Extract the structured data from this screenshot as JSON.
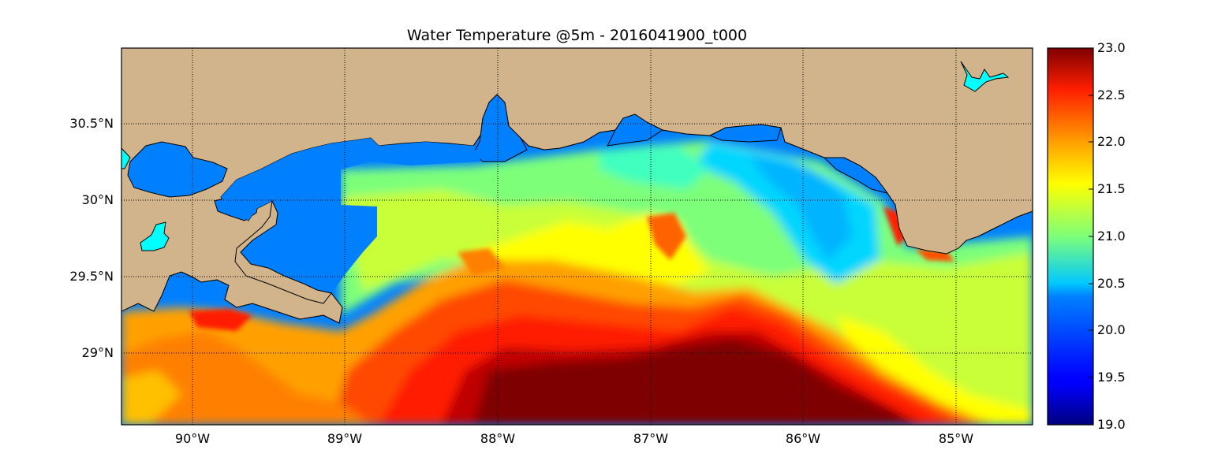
{
  "title": "Water Temperature @5m - 2016041900_t000",
  "map": {
    "lon_range": [
      -90.5,
      -84.5
    ],
    "lat_range": [
      28.55,
      31.0
    ],
    "grid": true,
    "land_color": "#d2b48c",
    "water_color": "#0080ff",
    "lakes_color": "#00ffff",
    "lat_ticks": [
      "30.5°N",
      "30°N",
      "29.5°N",
      "29°N"
    ],
    "lon_ticks": [
      "90°W",
      "89°W",
      "88°W",
      "87°W",
      "86°W",
      "85°W"
    ]
  },
  "colorbar": {
    "colormap": "jet",
    "min": 19.0,
    "max": 23.0,
    "ticks": [
      "23.0",
      "22.5",
      "22.0",
      "21.5",
      "21.0",
      "20.5",
      "20.0",
      "19.5",
      "19.0"
    ]
  }
}
